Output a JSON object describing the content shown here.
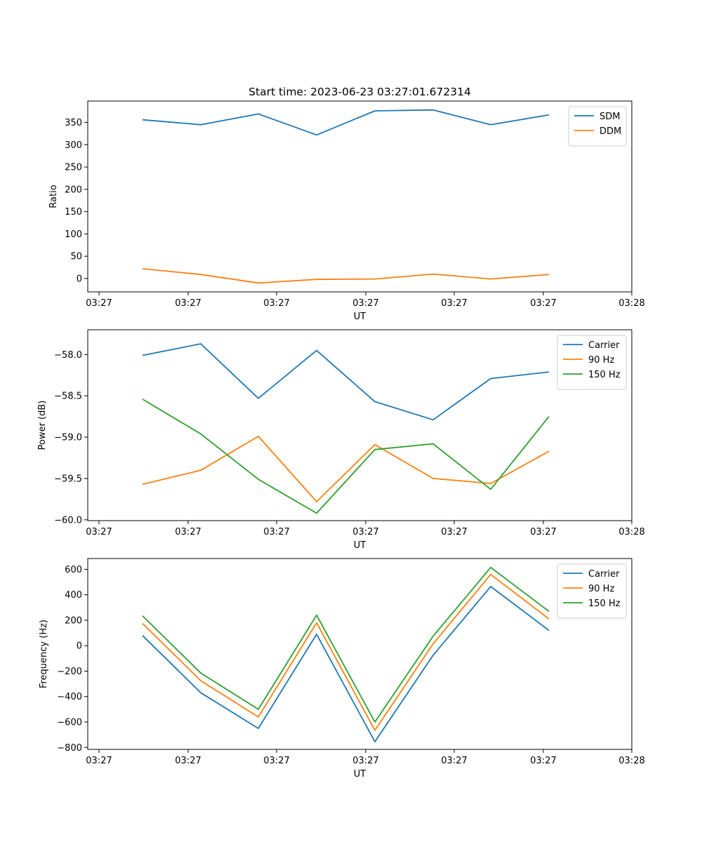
{
  "colors": {
    "blue": "#1f77b4",
    "orange": "#ff7f0e",
    "green": "#2ca02c"
  },
  "chart_data": [
    {
      "type": "line",
      "title": "Start time: 2023-06-23 03:27:01.672314",
      "xlabel": "UT",
      "ylabel": "Ratio",
      "x_tick_labels": [
        "03:27",
        "03:27",
        "03:27",
        "03:27",
        "03:27",
        "03:27",
        "03:28"
      ],
      "y_ticks": [
        0,
        50,
        100,
        150,
        200,
        250,
        300,
        350
      ],
      "ylim": [
        -30,
        398
      ],
      "legend": "top-right",
      "grid": false,
      "series": [
        {
          "name": "SDM",
          "color": "#1f77b4",
          "values": [
            356,
            345,
            369,
            322,
            376,
            378,
            345,
            367
          ]
        },
        {
          "name": "DDM",
          "color": "#ff7f0e",
          "values": [
            22,
            9,
            -10,
            -2,
            -1,
            10,
            -1,
            9
          ]
        }
      ]
    },
    {
      "type": "line",
      "title": "",
      "xlabel": "UT",
      "ylabel": "Power (dB)",
      "x_tick_labels": [
        "03:27",
        "03:27",
        "03:27",
        "03:27",
        "03:27",
        "03:27",
        "03:28"
      ],
      "y_ticks": [
        -60.0,
        -59.5,
        -59.0,
        -58.5,
        -58.0
      ],
      "y_tick_labels": [
        "−60.0",
        "−59.5",
        "−59.0",
        "−58.5",
        "−58.0"
      ],
      "ylim": [
        -60.01,
        -57.7
      ],
      "legend": "top-right",
      "grid": false,
      "series": [
        {
          "name": "Carrier",
          "color": "#1f77b4",
          "values": [
            -58.01,
            -57.87,
            -58.53,
            -57.95,
            -58.57,
            -58.79,
            -58.29,
            -58.21
          ]
        },
        {
          "name": "90 Hz",
          "color": "#ff7f0e",
          "values": [
            -59.57,
            -59.4,
            -58.99,
            -59.78,
            -59.09,
            -59.5,
            -59.56,
            -59.17
          ]
        },
        {
          "name": "150 Hz",
          "color": "#2ca02c",
          "values": [
            -58.54,
            -58.96,
            -59.51,
            -59.92,
            -59.15,
            -59.08,
            -59.63,
            -58.75
          ]
        }
      ]
    },
    {
      "type": "line",
      "title": "",
      "xlabel": "UT",
      "ylabel": "Frequency (Hz)",
      "x_tick_labels": [
        "03:27",
        "03:27",
        "03:27",
        "03:27",
        "03:27",
        "03:27",
        "03:28"
      ],
      "y_ticks": [
        -800,
        -600,
        -400,
        -200,
        0,
        200,
        400,
        600
      ],
      "y_tick_labels": [
        "−800",
        "−600",
        "−400",
        "−200",
        "0",
        "200",
        "400",
        "600"
      ],
      "ylim": [
        -815,
        685
      ],
      "legend": "top-right",
      "grid": false,
      "series": [
        {
          "name": "Carrier",
          "color": "#1f77b4",
          "values": [
            80,
            -370,
            -650,
            90,
            -755,
            -75,
            465,
            120
          ]
        },
        {
          "name": "90 Hz",
          "color": "#ff7f0e",
          "values": [
            175,
            -275,
            -560,
            180,
            -665,
            15,
            560,
            210
          ]
        },
        {
          "name": "150 Hz",
          "color": "#2ca02c",
          "values": [
            235,
            -215,
            -500,
            240,
            -600,
            75,
            615,
            270
          ]
        }
      ]
    }
  ]
}
